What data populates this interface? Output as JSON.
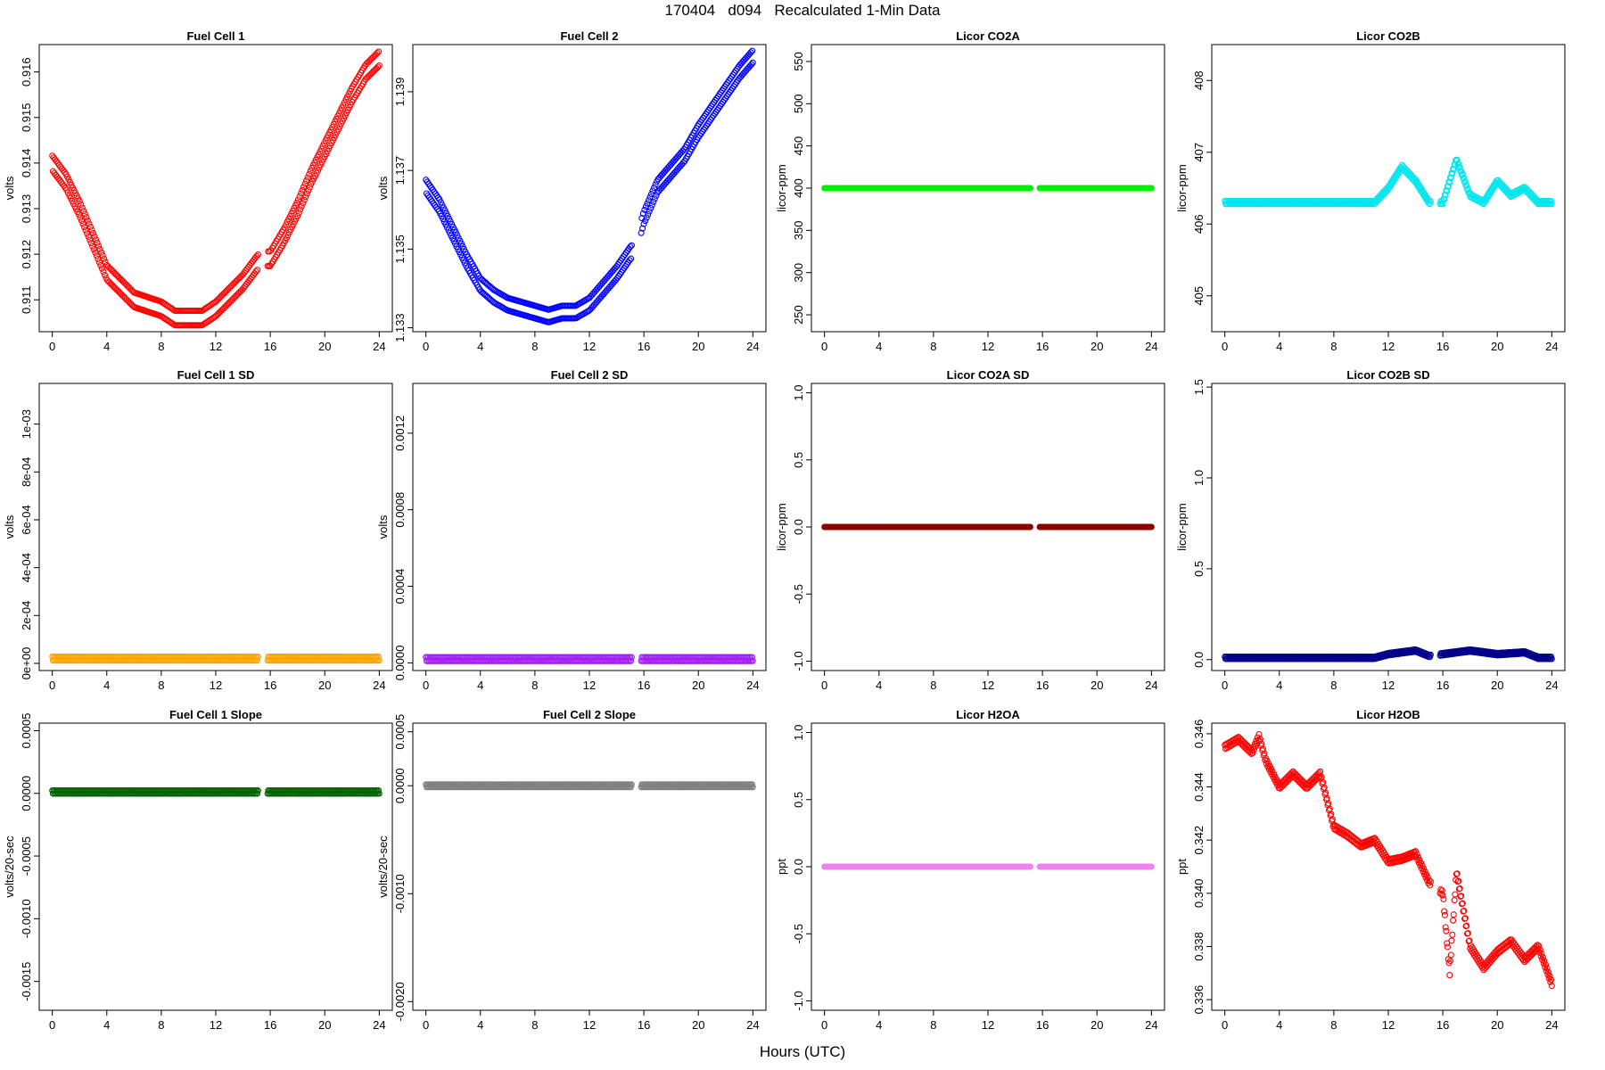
{
  "figure": {
    "title": "170404   d094   Recalculated 1-Min Data",
    "xlabel": "Hours (UTC)"
  },
  "chart_data": [
    {
      "type": "scatter",
      "title": "Fuel Cell 1",
      "xlabel": "",
      "ylabel": "volts",
      "xlim": [
        -0.96,
        24.96
      ],
      "ylim": [
        0.9103,
        0.9166
      ],
      "xticks": [
        0,
        4,
        8,
        12,
        16,
        20,
        24
      ],
      "xtick_labels": [
        "0",
        "4",
        "8",
        "12",
        "16",
        "20",
        "24"
      ],
      "yticks": [
        0.911,
        0.912,
        0.913,
        0.914,
        0.915,
        0.916
      ],
      "ytick_labels": [
        "0.911",
        "0.912",
        "0.913",
        "0.914",
        "0.915",
        "0.916"
      ],
      "colors": [
        "#ff0000"
      ],
      "grid": false,
      "series": [
        {
          "band": 0.00016,
          "x": [
            0,
            1,
            2,
            3,
            4,
            5,
            6,
            7,
            8,
            9,
            10,
            11,
            12,
            13,
            14,
            15,
            15.3,
            16,
            17,
            18,
            19,
            20,
            21,
            22,
            23,
            24
          ],
          "y": [
            0.914,
            0.9136,
            0.913,
            0.9123,
            0.9116,
            0.9113,
            0.911,
            0.9109,
            0.9108,
            0.9106,
            0.9106,
            0.9106,
            0.9108,
            0.9111,
            0.9114,
            0.9118,
            0.9119,
            0.9119,
            0.9124,
            0.913,
            0.9137,
            0.9143,
            0.9149,
            0.9155,
            0.916,
            0.9163
          ]
        }
      ]
    },
    {
      "type": "scatter",
      "title": "Fuel Cell 2",
      "xlabel": "",
      "ylabel": "volts",
      "xlim": [
        -0.96,
        24.96
      ],
      "ylim": [
        1.1329,
        1.1402
      ],
      "xticks": [
        0,
        4,
        8,
        12,
        16,
        20,
        24
      ],
      "xtick_labels": [
        "0",
        "4",
        "8",
        "12",
        "16",
        "20",
        "24"
      ],
      "yticks": [
        1.133,
        1.135,
        1.137,
        1.139
      ],
      "ytick_labels": [
        "1.133",
        "1.135",
        "1.137",
        "1.139"
      ],
      "colors": [
        "#0000ff"
      ],
      "grid": false,
      "series": [
        {
          "band": 0.00016,
          "x": [
            0,
            1,
            2,
            3,
            4,
            5,
            6,
            7,
            8,
            9,
            10,
            11,
            12,
            13,
            14,
            15,
            15.3,
            16,
            17,
            18,
            19,
            20,
            21,
            22,
            23,
            24
          ],
          "y": [
            1.1366,
            1.1361,
            1.1354,
            1.1347,
            1.1341,
            1.1338,
            1.1336,
            1.1335,
            1.1334,
            1.1333,
            1.1334,
            1.1334,
            1.1336,
            1.134,
            1.1344,
            1.1349,
            1.135,
            1.1358,
            1.1366,
            1.137,
            1.1374,
            1.138,
            1.1385,
            1.139,
            1.1395,
            1.1399
          ]
        }
      ]
    },
    {
      "type": "scatter",
      "title": "Licor CO2A",
      "xlabel": "",
      "ylabel": "licor-ppm",
      "xlim": [
        -0.96,
        24.96
      ],
      "ylim": [
        230,
        570
      ],
      "xticks": [
        0,
        4,
        8,
        12,
        16,
        20,
        24
      ],
      "xtick_labels": [
        "0",
        "4",
        "8",
        "12",
        "16",
        "20",
        "24"
      ],
      "yticks": [
        250,
        300,
        350,
        400,
        450,
        500,
        550
      ],
      "ytick_labels": [
        "250",
        "300",
        "350",
        "400",
        "450",
        "500",
        "550"
      ],
      "colors": [
        "#00ee00"
      ],
      "grid": false,
      "series": [
        {
          "band": 0,
          "x": [
            0,
            15.1,
            15.5,
            24
          ],
          "y": [
            400,
            400,
            400,
            400
          ]
        }
      ]
    },
    {
      "type": "scatter",
      "title": "Licor CO2B",
      "xlabel": "",
      "ylabel": "licor-ppm",
      "xlim": [
        -0.96,
        24.96
      ],
      "ylim": [
        404.5,
        408.5
      ],
      "xticks": [
        0,
        4,
        8,
        12,
        16,
        20,
        24
      ],
      "xtick_labels": [
        "0",
        "4",
        "8",
        "12",
        "16",
        "20",
        "24"
      ],
      "yticks": [
        405,
        406,
        407,
        408
      ],
      "ytick_labels": [
        "405",
        "406",
        "407",
        "408"
      ],
      "colors": [
        "#00e5ee"
      ],
      "grid": false,
      "series": [
        {
          "band": 0.02,
          "x": [
            0,
            4,
            8,
            11,
            12,
            13,
            14,
            15,
            16,
            17,
            18,
            19,
            20,
            21,
            22,
            23,
            24
          ],
          "y": [
            406.3,
            406.3,
            406.3,
            406.3,
            406.5,
            406.8,
            406.6,
            406.3,
            406.3,
            406.9,
            406.4,
            406.3,
            406.6,
            406.4,
            406.5,
            406.3,
            406.3
          ]
        }
      ]
    },
    {
      "type": "scatter",
      "title": "Fuel Cell 1 SD",
      "xlabel": "",
      "ylabel": "volts",
      "xlim": [
        -0.96,
        24.96
      ],
      "ylim": [
        -3e-05,
        0.00117
      ],
      "xticks": [
        0,
        4,
        8,
        12,
        16,
        20,
        24
      ],
      "xtick_labels": [
        "0",
        "4",
        "8",
        "12",
        "16",
        "20",
        "24"
      ],
      "yticks": [
        0,
        0.0002,
        0.0004,
        0.0006,
        0.0008,
        0.001
      ],
      "ytick_labels": [
        "0e+00",
        "2e-04",
        "4e-04",
        "6e-04",
        "8e-04",
        "1e-03"
      ],
      "colors": [
        "#ffa500"
      ],
      "grid": false,
      "series": [
        {
          "band": 8e-06,
          "x": [
            0,
            15.1,
            16,
            24
          ],
          "y": [
            2e-05,
            2e-05,
            2e-05,
            2e-05
          ]
        }
      ]
    },
    {
      "type": "scatter",
      "title": "Fuel Cell 2 SD",
      "xlabel": "",
      "ylabel": "volts",
      "xlim": [
        -0.96,
        24.96
      ],
      "ylim": [
        -4e-05,
        0.00146
      ],
      "xticks": [
        0,
        4,
        8,
        12,
        16,
        20,
        24
      ],
      "xtick_labels": [
        "0",
        "4",
        "8",
        "12",
        "16",
        "20",
        "24"
      ],
      "yticks": [
        0,
        0.0004,
        0.0008,
        0.0012
      ],
      "ytick_labels": [
        "0.0000",
        "0.0004",
        "0.0008",
        "0.0012"
      ],
      "colors": [
        "#a020f0"
      ],
      "grid": false,
      "series": [
        {
          "band": 1e-05,
          "x": [
            0,
            15.1,
            16,
            24
          ],
          "y": [
            2e-05,
            2e-05,
            2e-05,
            2e-05
          ]
        }
      ]
    },
    {
      "type": "scatter",
      "title": "Licor CO2A SD",
      "xlabel": "",
      "ylabel": "licor-ppm",
      "xlim": [
        -0.96,
        24.96
      ],
      "ylim": [
        -1.07,
        1.07
      ],
      "xticks": [
        0,
        4,
        8,
        12,
        16,
        20,
        24
      ],
      "xtick_labels": [
        "0",
        "4",
        "8",
        "12",
        "16",
        "20",
        "24"
      ],
      "yticks": [
        -1.0,
        -0.5,
        0.0,
        0.5,
        1.0
      ],
      "ytick_labels": [
        "-1.0",
        "-0.5",
        "0.0",
        "0.5",
        "1.0"
      ],
      "colors": [
        "#8b0000"
      ],
      "grid": false,
      "series": [
        {
          "band": 0,
          "x": [
            0,
            15.1,
            15.5,
            24
          ],
          "y": [
            0,
            0,
            0,
            0
          ]
        }
      ]
    },
    {
      "type": "scatter",
      "title": "Licor CO2B SD",
      "xlabel": "",
      "ylabel": "licor-ppm",
      "xlim": [
        -0.96,
        24.96
      ],
      "ylim": [
        -0.06,
        1.52
      ],
      "xticks": [
        0,
        4,
        8,
        12,
        16,
        20,
        24
      ],
      "xtick_labels": [
        "0",
        "4",
        "8",
        "12",
        "16",
        "20",
        "24"
      ],
      "yticks": [
        0.0,
        0.5,
        1.0,
        1.5
      ],
      "ytick_labels": [
        "0.0",
        "0.5",
        "1.0",
        "1.5"
      ],
      "colors": [
        "#00008b"
      ],
      "grid": false,
      "series": [
        {
          "band": 0.006,
          "x": [
            0,
            11,
            12,
            14,
            15,
            16,
            18,
            20,
            22,
            23,
            24
          ],
          "y": [
            0.01,
            0.01,
            0.03,
            0.05,
            0.02,
            0.03,
            0.05,
            0.03,
            0.04,
            0.01,
            0.01
          ]
        }
      ]
    },
    {
      "type": "scatter",
      "title": "Fuel Cell 1 Slope",
      "xlabel": "",
      "ylabel": "volts/20-sec",
      "xlim": [
        -0.96,
        24.96
      ],
      "ylim": [
        -0.00173,
        0.00056
      ],
      "xticks": [
        0,
        4,
        8,
        12,
        16,
        20,
        24
      ],
      "xtick_labels": [
        "0",
        "4",
        "8",
        "12",
        "16",
        "20",
        "24"
      ],
      "yticks": [
        -0.0015,
        -0.001,
        -0.0005,
        0.0,
        0.0005
      ],
      "ytick_labels": [
        "-0.0015",
        "-0.0010",
        "-0.0005",
        "0.0000",
        "0.0005"
      ],
      "colors": [
        "#006400"
      ],
      "grid": false,
      "series": [
        {
          "band": 1.2e-05,
          "x": [
            0,
            15.1,
            16,
            24
          ],
          "y": [
            1e-05,
            1e-05,
            1e-05,
            1e-05
          ]
        }
      ]
    },
    {
      "type": "scatter",
      "title": "Fuel Cell 2 Slope",
      "xlabel": "",
      "ylabel": "volts/20-sec",
      "xlim": [
        -0.96,
        24.96
      ],
      "ylim": [
        -0.00208,
        0.00058
      ],
      "xticks": [
        0,
        4,
        8,
        12,
        16,
        20,
        24
      ],
      "xtick_labels": [
        "0",
        "4",
        "8",
        "12",
        "16",
        "20",
        "24"
      ],
      "yticks": [
        -0.002,
        -0.001,
        0.0,
        0.0005
      ],
      "ytick_labels": [
        "-0.0020",
        "-0.0010",
        "0.0000",
        "0.0005"
      ],
      "colors": [
        "#808080"
      ],
      "grid": false,
      "series": [
        {
          "band": 1.2e-05,
          "x": [
            0,
            15.1,
            16,
            24
          ],
          "y": [
            0,
            0,
            0,
            0
          ]
        }
      ]
    },
    {
      "type": "scatter",
      "title": "Licor H2OA",
      "xlabel": "",
      "ylabel": "ppt",
      "xlim": [
        -0.96,
        24.96
      ],
      "ylim": [
        -1.07,
        1.07
      ],
      "xticks": [
        0,
        4,
        8,
        12,
        16,
        20,
        24
      ],
      "xtick_labels": [
        "0",
        "4",
        "8",
        "12",
        "16",
        "20",
        "24"
      ],
      "yticks": [
        -1.0,
        -0.5,
        0.0,
        0.5,
        1.0
      ],
      "ytick_labels": [
        "-1.0",
        "-0.5",
        "0.0",
        "0.5",
        "1.0"
      ],
      "colors": [
        "#ee82ee"
      ],
      "grid": false,
      "series": [
        {
          "band": 0,
          "x": [
            0,
            15.1,
            15.5,
            24
          ],
          "y": [
            0,
            0,
            0,
            0
          ]
        }
      ]
    },
    {
      "type": "scatter",
      "title": "Licor H2OB",
      "xlabel": "",
      "ylabel": "ppt",
      "xlim": [
        -0.96,
        24.96
      ],
      "ylim": [
        0.3356,
        0.3464
      ],
      "xticks": [
        0,
        4,
        8,
        12,
        16,
        20,
        24
      ],
      "xtick_labels": [
        "0",
        "4",
        "8",
        "12",
        "16",
        "20",
        "24"
      ],
      "yticks": [
        0.336,
        0.338,
        0.34,
        0.342,
        0.344,
        0.346
      ],
      "ytick_labels": [
        "0.336",
        "0.338",
        "0.340",
        "0.342",
        "0.344",
        "0.346"
      ],
      "colors": [
        "#ff0000"
      ],
      "grid": false,
      "series": [
        {
          "band": 8e-05,
          "x": [
            0,
            1,
            2,
            2.5,
            3,
            4,
            5,
            6,
            7,
            8,
            9,
            10,
            11,
            12,
            13,
            14,
            15,
            16,
            16.5,
            17,
            18,
            19,
            20,
            21,
            22,
            23,
            24
          ],
          "y": [
            0.3455,
            0.3458,
            0.3453,
            0.3459,
            0.345,
            0.344,
            0.3445,
            0.344,
            0.3445,
            0.3425,
            0.3422,
            0.3418,
            0.342,
            0.3412,
            0.3413,
            0.3415,
            0.3404,
            0.34,
            0.337,
            0.3408,
            0.338,
            0.3372,
            0.3378,
            0.3382,
            0.3375,
            0.338,
            0.3366
          ]
        }
      ]
    }
  ]
}
